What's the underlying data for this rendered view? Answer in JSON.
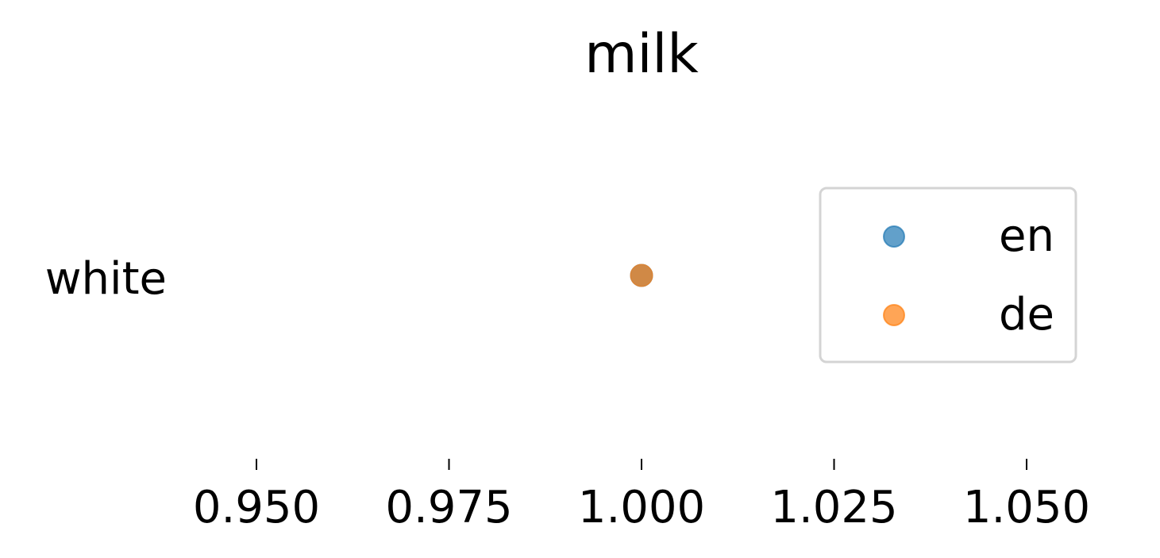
{
  "chart_data": {
    "type": "scatter",
    "title": "milk",
    "xlabel": "",
    "ylabel": "",
    "xlim": [
      0.94,
      1.06
    ],
    "categories": [
      "white"
    ],
    "x_ticks": [
      0.95,
      0.975,
      1.0,
      1.025,
      1.05
    ],
    "x_tick_labels": [
      "0.950",
      "0.975",
      "1.000",
      "1.025",
      "1.050"
    ],
    "series": [
      {
        "name": "en",
        "color": "#1f77b4",
        "points": [
          {
            "category": "white",
            "x": 1.0
          }
        ]
      },
      {
        "name": "de",
        "color": "#ff7f0e",
        "points": [
          {
            "category": "white",
            "x": 1.0
          }
        ]
      }
    ],
    "legend_position": "right",
    "grid": false,
    "point_opacity": 0.7
  }
}
